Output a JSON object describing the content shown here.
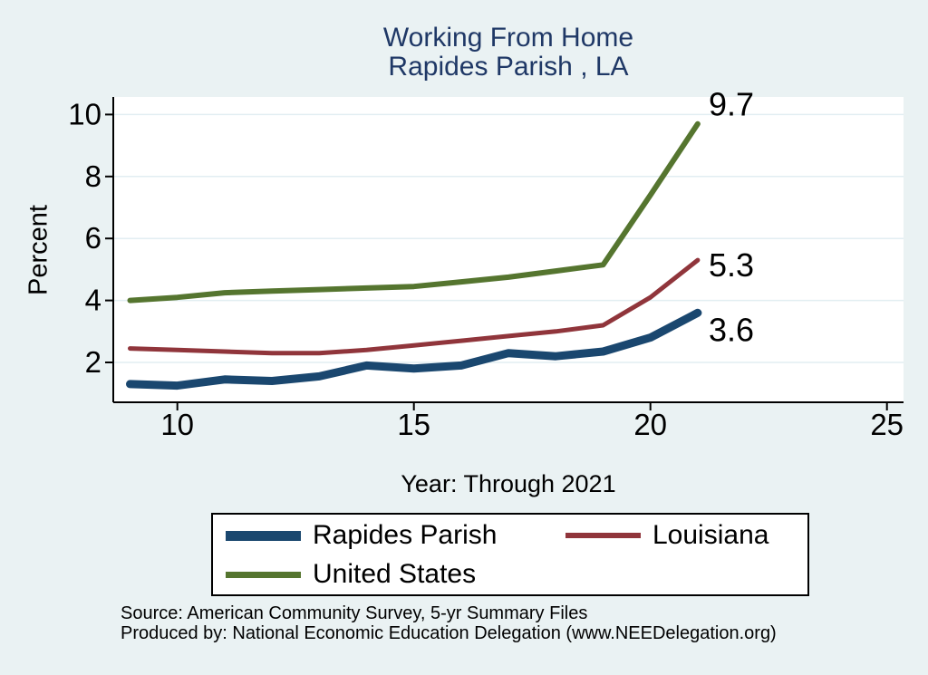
{
  "figure": {
    "title_line1": "Working From Home",
    "title_line2": "Rapides Parish , LA",
    "background": "#eaf2f3",
    "title_color": "#1f3866"
  },
  "chart_data": {
    "type": "line",
    "title": "Working From Home",
    "subtitle": "Rapides Parish , LA",
    "xlabel": "Year: Through 2021",
    "ylabel": "Percent",
    "x": [
      9,
      10,
      11,
      12,
      13,
      14,
      15,
      16,
      17,
      18,
      19,
      20,
      21
    ],
    "x_ticks": [
      10,
      15,
      20,
      25
    ],
    "y_ticks": [
      2,
      4,
      6,
      8,
      10
    ],
    "xlim": [
      8.65,
      25.35
    ],
    "ylim": [
      0.71,
      10.57
    ],
    "grid": true,
    "plot_bg": "#ffffff",
    "grid_color": "#e2eef2",
    "axis_color": "#000000",
    "legend_position": "bottom",
    "series": [
      {
        "name": "Rapides Parish",
        "color": "#1a476f",
        "line_width": 9,
        "end_label": "3.6",
        "values": [
          1.3,
          1.25,
          1.45,
          1.4,
          1.55,
          1.9,
          1.8,
          1.9,
          2.3,
          2.2,
          2.35,
          2.8,
          3.6
        ]
      },
      {
        "name": "Louisiana",
        "color": "#90353b",
        "line_width": 5,
        "end_label": "5.3",
        "values": [
          2.45,
          2.4,
          2.35,
          2.3,
          2.3,
          2.4,
          2.55,
          2.7,
          2.85,
          3.0,
          3.2,
          4.1,
          5.3
        ]
      },
      {
        "name": "United States",
        "color": "#55752f",
        "line_width": 6,
        "end_label": "9.7",
        "values": [
          4.0,
          4.1,
          4.25,
          4.3,
          4.35,
          4.4,
          4.45,
          4.6,
          4.75,
          4.95,
          5.15,
          7.4,
          9.7
        ]
      }
    ]
  },
  "footer": {
    "line1": "Source: American Community Survey, 5-yr Summary Files",
    "line2": "Produced by: National Economic Education Delegation (www.NEEDelegation.org)"
  }
}
